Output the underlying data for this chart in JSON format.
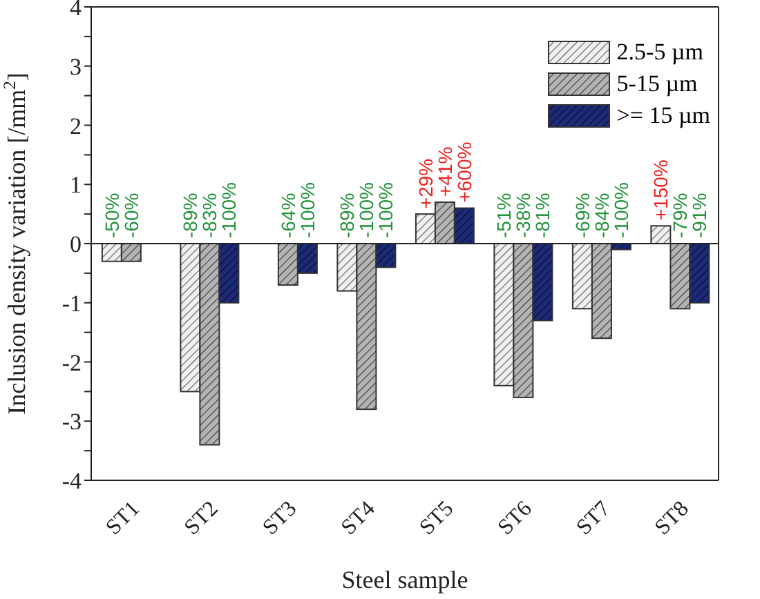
{
  "chart_data": {
    "type": "bar",
    "xlabel": "Steel sample",
    "ylabel": "Inclusion density variation [/mm$^{2}$]",
    "categories": [
      "ST1",
      "ST2",
      "ST3",
      "ST4",
      "ST5",
      "ST6",
      "ST7",
      "ST8"
    ],
    "series": [
      {
        "name": "2.5-5 µm",
        "color": "#f0f0f0",
        "values": [
          -0.3,
          -2.5,
          null,
          -0.8,
          0.5,
          -2.4,
          -1.1,
          0.3
        ]
      },
      {
        "name": "5-15 µm",
        "color": "#b4b4b4",
        "values": [
          -0.3,
          -3.4,
          -0.7,
          -2.8,
          0.7,
          -2.6,
          -1.6,
          -1.1
        ]
      },
      {
        "name": ">= 15 µm",
        "color": "#1c2a78",
        "values": [
          null,
          -1.0,
          -0.5,
          -0.4,
          0.6,
          -1.3,
          -0.1,
          -1.0
        ]
      }
    ],
    "annotations": [
      "-50%",
      "-60%",
      "-89%",
      "-83%",
      "-100%",
      "-64%",
      "-100%",
      "-89%",
      "-100%",
      "-100%",
      "+29%",
      "+41%",
      "+600%",
      "-51%",
      "-38%",
      "-81%",
      "-69%",
      "-84%",
      "-100%",
      "+150%",
      "-79%",
      "-91%"
    ],
    "ylim": [
      -4,
      4
    ],
    "yticks": [
      -4,
      {
        "value": -3.5,
        "label": null
      },
      -3,
      {
        "value": -2.5,
        "label": null
      },
      -2,
      {
        "value": -1.5,
        "label": null
      },
      -1,
      {
        "value": -0.5,
        "label": null
      },
      0,
      {
        "value": 0.5,
        "label": null
      },
      1,
      {
        "value": 1.5,
        "label": null
      },
      2,
      {
        "value": 2.5,
        "label": null
      },
      3,
      {
        "value": 3.5,
        "label": null
      },
      4
    ],
    "ref_lines": [
      {
        "axis": "y",
        "value": 0,
        "color": "#222222"
      }
    ],
    "legend": "top right"
  }
}
